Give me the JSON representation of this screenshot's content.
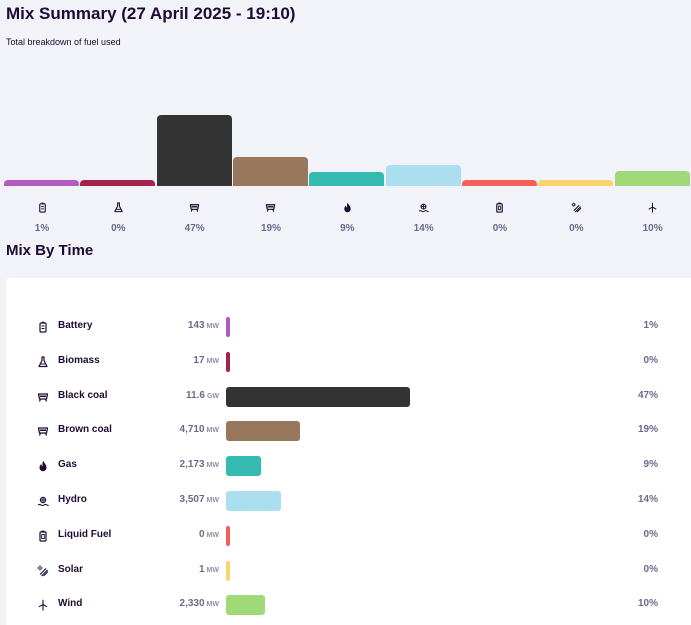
{
  "summary": {
    "title": "Mix Summary (27 April 2025 - 19:10)",
    "subtitle": "Total breakdown of fuel used"
  },
  "section": {
    "title": "Mix By Time"
  },
  "chart_data": {
    "type": "bar",
    "title": "Mix Summary (27 April 2025 - 19:10)",
    "subtitle": "Total breakdown of fuel used",
    "categories": [
      "Battery",
      "Biomass",
      "Black coal",
      "Brown coal",
      "Gas",
      "Hydro",
      "Liquid Fuel",
      "Solar",
      "Wind"
    ],
    "values": [
      1,
      0,
      47,
      19,
      9,
      14,
      0,
      0,
      10
    ],
    "value_labels": [
      "1%",
      "0%",
      "47%",
      "19%",
      "9%",
      "14%",
      "0%",
      "0%",
      "10%"
    ],
    "colors": [
      "#b05cc0",
      "#a3234a",
      "#333333",
      "#98785d",
      "#34bab1",
      "#abdeee",
      "#f45f5a",
      "#fdd36e",
      "#a1d978"
    ],
    "icons": [
      "battery-icon",
      "flask-icon",
      "coal-cart-icon",
      "coal-cart-icon",
      "flame-icon",
      "hydro-icon",
      "fuel-can-icon",
      "solar-icon",
      "wind-icon"
    ],
    "ylim": [
      0,
      47
    ]
  },
  "mix": {
    "rows": [
      {
        "name": "Battery",
        "value": "143",
        "unit": "MW",
        "pct": "1%",
        "share": 1,
        "color": "#b05cc0",
        "icon": "battery-icon"
      },
      {
        "name": "Biomass",
        "value": "17",
        "unit": "MW",
        "pct": "0%",
        "share": 0,
        "color": "#a3234a",
        "icon": "flask-icon"
      },
      {
        "name": "Black coal",
        "value": "11.6",
        "unit": "GW",
        "pct": "47%",
        "share": 47,
        "color": "#333333",
        "icon": "coal-cart-icon"
      },
      {
        "name": "Brown coal",
        "value": "4,710",
        "unit": "MW",
        "pct": "19%",
        "share": 19,
        "color": "#98785d",
        "icon": "coal-cart-icon"
      },
      {
        "name": "Gas",
        "value": "2,173",
        "unit": "MW",
        "pct": "9%",
        "share": 9,
        "color": "#34bab1",
        "icon": "flame-icon"
      },
      {
        "name": "Hydro",
        "value": "3,507",
        "unit": "MW",
        "pct": "14%",
        "share": 14,
        "color": "#abdeee",
        "icon": "hydro-icon"
      },
      {
        "name": "Liquid Fuel",
        "value": "0",
        "unit": "MW",
        "pct": "0%",
        "share": 0,
        "color": "#f45f5a",
        "icon": "fuel-can-icon"
      },
      {
        "name": "Solar",
        "value": "1",
        "unit": "MW",
        "pct": "0%",
        "share": 0,
        "color": "#fdd36e",
        "icon": "solar-icon"
      },
      {
        "name": "Wind",
        "value": "2,330",
        "unit": "MW",
        "pct": "10%",
        "share": 10,
        "color": "#a1d978",
        "icon": "wind-icon"
      }
    ]
  }
}
